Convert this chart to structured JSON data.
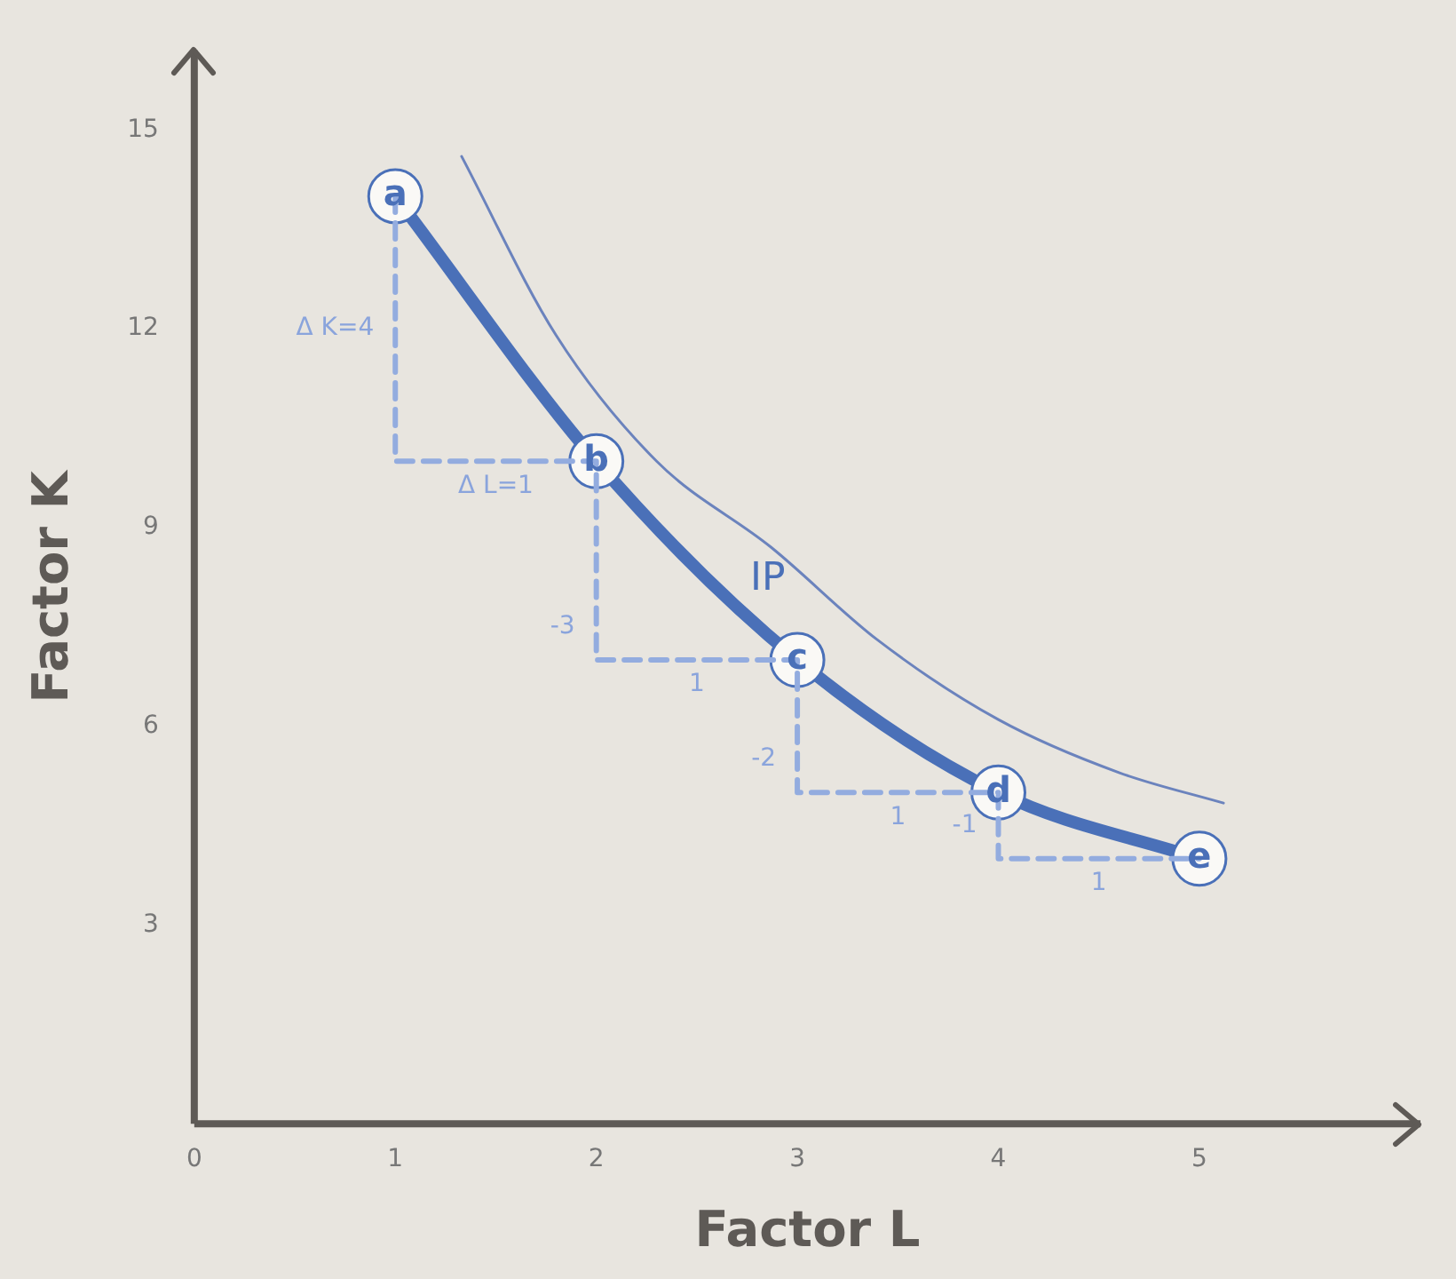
{
  "chart_data": {
    "type": "line",
    "xlabel": "Factor L",
    "ylabel": "Factor K",
    "xlim": [
      0,
      6.1
    ],
    "ylim": [
      0,
      16.2
    ],
    "xticks": [
      0,
      1,
      2,
      3,
      4,
      5
    ],
    "yticks": [
      3,
      6,
      9,
      12,
      15
    ],
    "grid": false,
    "legend": false,
    "line_style": "solid",
    "marker": "none",
    "series": [
      {
        "color": "#6b83bd",
        "x": [
          1.33,
          1.8,
          2.3,
          2.87,
          3.4,
          4.0,
          4.6,
          5.12
        ],
        "values": [
          14.6,
          11.9,
          10.0,
          8.7,
          7.3,
          6.1,
          5.3,
          4.84
        ]
      },
      {
        "color": "#93acdf",
        "line_style": "dashed",
        "x": [
          1,
          1,
          2,
          2,
          3,
          3,
          4,
          4,
          5
        ],
        "values": [
          14,
          10,
          10,
          7,
          7,
          5,
          5,
          4,
          4
        ]
      },
      {
        "color": "#4a70b8",
        "marker": "circle",
        "x": [
          1,
          2,
          3,
          4,
          5
        ],
        "values": [
          14,
          10,
          7,
          5,
          4
        ]
      }
    ],
    "annotations": [
      {
        "text": "a",
        "x": 1,
        "y": 14
      },
      {
        "text": "b",
        "x": 2,
        "y": 10
      },
      {
        "text": "c",
        "x": 3,
        "y": 7
      },
      {
        "text": "d",
        "x": 4,
        "y": 5
      },
      {
        "text": "e",
        "x": 5,
        "y": 4
      },
      {
        "text": "IP",
        "x": 2.87,
        "y": 8.7
      },
      {
        "text": "Δ K=4",
        "x": 1,
        "y": 12
      },
      {
        "text": "Δ L=1",
        "x": 1.5,
        "y": 10
      },
      {
        "text": "-3",
        "x": 2,
        "y": 7.5
      },
      {
        "text": "1",
        "x": 2.5,
        "y": 7
      },
      {
        "text": "-2",
        "x": 3,
        "y": 5.5
      },
      {
        "text": "1",
        "x": 3.5,
        "y": 5
      },
      {
        "text": "-1",
        "x": 4,
        "y": 4.5
      },
      {
        "text": "1",
        "x": 4.5,
        "y": 4
      }
    ]
  }
}
